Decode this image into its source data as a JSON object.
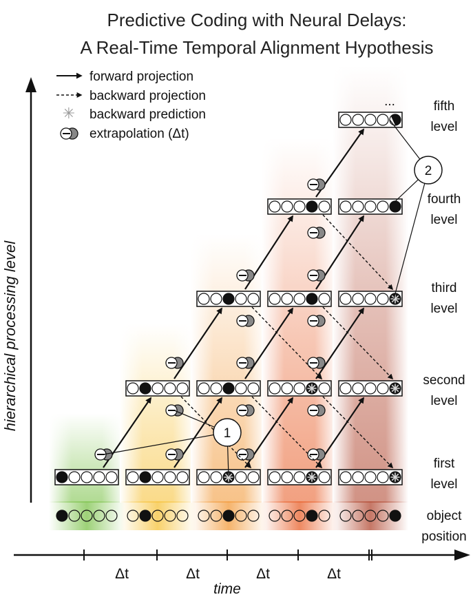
{
  "title": {
    "line1": "Predictive Coding with Neural Delays:",
    "line2": "A Real-Time Temporal Alignment Hypothesis"
  },
  "legend": {
    "forward": "forward projection",
    "backward": "backward projection",
    "prediction": "backward prediction",
    "extrapolation": "extrapolation (Δt)"
  },
  "axes": {
    "y_label": "hierarchical processing level",
    "x_label": "time",
    "tick_label": "Δt",
    "ellipsis": "..."
  },
  "levels": {
    "first_a": "first",
    "first_b": "level",
    "second_a": "second",
    "second_b": "level",
    "third_a": "third",
    "third_b": "level",
    "fourth_a": "fourth",
    "fourth_b": "level",
    "fifth_a": "fifth",
    "fifth_b": "level",
    "object_a": "object",
    "object_b": "position"
  },
  "callouts": {
    "one": "1",
    "two": "2"
  },
  "colors": {
    "green": "#7cc24a",
    "yellow": "#f6c23a",
    "orange": "#f29a3a",
    "red_orange": "#e8612c",
    "brown": "#b24a33"
  },
  "object_positions": [
    0,
    1,
    2,
    3,
    4
  ]
}
